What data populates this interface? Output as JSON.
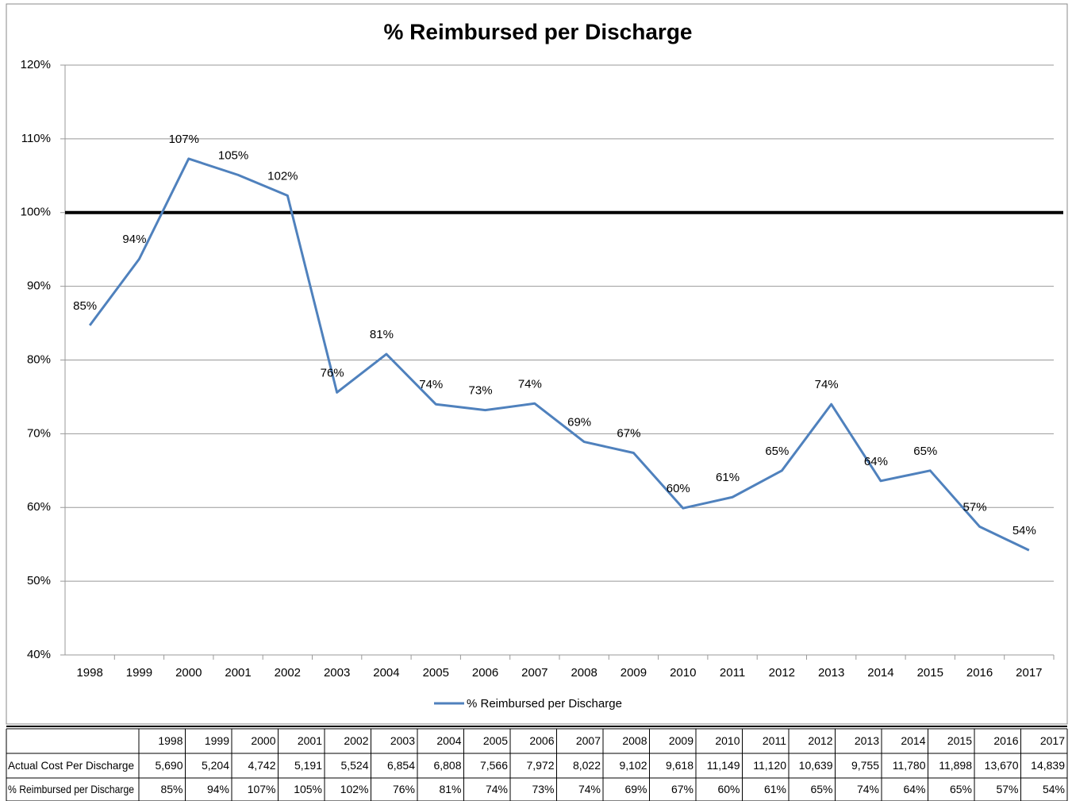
{
  "chart_data": {
    "type": "line",
    "title": "% Reimbursed per Discharge",
    "categories": [
      "1998",
      "1999",
      "2000",
      "2001",
      "2002",
      "2003",
      "2004",
      "2005",
      "2006",
      "2007",
      "2008",
      "2009",
      "2010",
      "2011",
      "2012",
      "2013",
      "2014",
      "2015",
      "2016",
      "2017"
    ],
    "series": [
      {
        "name": "% Reimbursed per Discharge",
        "color": "#4f81bd",
        "values": [
          84.7,
          93.7,
          107.3,
          105.1,
          102.3,
          75.6,
          80.8,
          74.0,
          73.2,
          74.1,
          68.9,
          67.4,
          59.9,
          61.4,
          65.0,
          74.0,
          63.6,
          65.0,
          57.4,
          54.2
        ],
        "value_labels": [
          "85%",
          "94%",
          "107%",
          "105%",
          "102%",
          "76%",
          "81%",
          "74%",
          "73%",
          "74%",
          "69%",
          "67%",
          "60%",
          "61%",
          "65%",
          "74%",
          "64%",
          "65%",
          "57%",
          "54%"
        ]
      }
    ],
    "ylim": [
      40,
      120
    ],
    "yticks": [
      {
        "value": 40,
        "label": "40%"
      },
      {
        "value": 50,
        "label": "50%"
      },
      {
        "value": 60,
        "label": "60%"
      },
      {
        "value": 70,
        "label": "70%"
      },
      {
        "value": 80,
        "label": "80%"
      },
      {
        "value": 90,
        "label": "90%"
      },
      {
        "value": 100,
        "label": "100%"
      },
      {
        "value": 110,
        "label": "110%"
      },
      {
        "value": 120,
        "label": "120%"
      }
    ],
    "reference_line": 100,
    "grid": true,
    "legend": "bottom"
  },
  "table": {
    "rows": [
      {
        "label": "Actual Cost Per Discharge",
        "values": [
          "5,690",
          "5,204",
          "4,742",
          "5,191",
          "5,524",
          "6,854",
          "6,808",
          "7,566",
          "7,972",
          "8,022",
          "9,102",
          "9,618",
          "11,149",
          "11,120",
          "10,639",
          "9,755",
          "11,780",
          "11,898",
          "13,670",
          "14,839"
        ]
      }
    ]
  }
}
